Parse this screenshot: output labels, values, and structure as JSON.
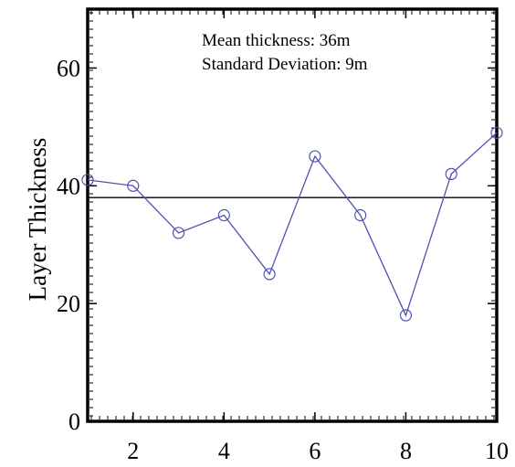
{
  "chart_data": {
    "type": "line",
    "title": "",
    "xlabel": "",
    "ylabel": "Layer Thickness",
    "xlim": [
      1,
      10
    ],
    "ylim": [
      0,
      70
    ],
    "xticks": [
      2,
      4,
      6,
      8,
      10
    ],
    "yticks": [
      0,
      20,
      40,
      60
    ],
    "grid": false,
    "annotations": [
      "Mean thickness: 36m",
      "Standard Deviation: 9m"
    ],
    "series": [
      {
        "x": [
          1,
          2,
          3,
          4,
          5,
          6,
          7,
          8,
          9,
          10
        ],
        "y": [
          41,
          40,
          32,
          35,
          25,
          45,
          35,
          18,
          42,
          49
        ],
        "marker": "circle",
        "color": "#5050b4"
      }
    ],
    "reference_lines": [
      {
        "orientation": "horizontal",
        "y": 38,
        "color": "#000000"
      }
    ]
  }
}
